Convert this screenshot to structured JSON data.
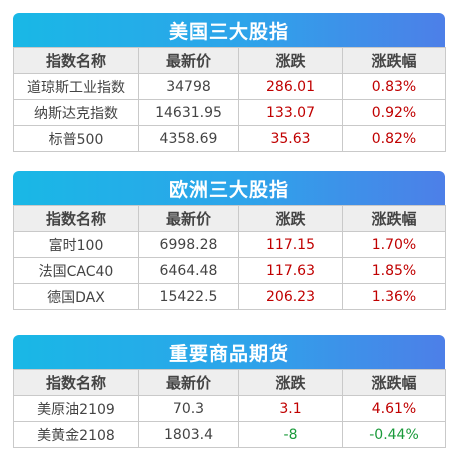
{
  "colors": {
    "up": "#c00000",
    "down": "#1a9a3a",
    "banner_start": "#19b8e6",
    "banner_end": "#4d7fe8"
  },
  "headers": [
    "指数名称",
    "最新价",
    "涨跌",
    "涨跌幅"
  ],
  "sections": [
    {
      "title": "美国三大股指",
      "rows": [
        {
          "name": "道琼斯工业指数",
          "price": "34798",
          "change": "286.01",
          "pct": "0.83%",
          "dir": "up"
        },
        {
          "name": "纳斯达克指数",
          "price": "14631.95",
          "change": "133.07",
          "pct": "0.92%",
          "dir": "up"
        },
        {
          "name": "标普500",
          "price": "4358.69",
          "change": "35.63",
          "pct": "0.82%",
          "dir": "up"
        }
      ]
    },
    {
      "title": "欧洲三大股指",
      "rows": [
        {
          "name": "富时100",
          "price": "6998.28",
          "change": "117.15",
          "pct": "1.70%",
          "dir": "up"
        },
        {
          "name": "法国CAC40",
          "price": "6464.48",
          "change": "117.63",
          "pct": "1.85%",
          "dir": "up"
        },
        {
          "name": "德国DAX",
          "price": "15422.5",
          "change": "206.23",
          "pct": "1.36%",
          "dir": "up"
        }
      ]
    },
    {
      "title": "重要商品期货",
      "rows": [
        {
          "name": "美原油2109",
          "price": "70.3",
          "change": "3.1",
          "pct": "4.61%",
          "dir": "up"
        },
        {
          "name": "美黄金2108",
          "price": "1803.4",
          "change": "-8",
          "pct": "-0.44%",
          "dir": "down"
        }
      ]
    }
  ]
}
